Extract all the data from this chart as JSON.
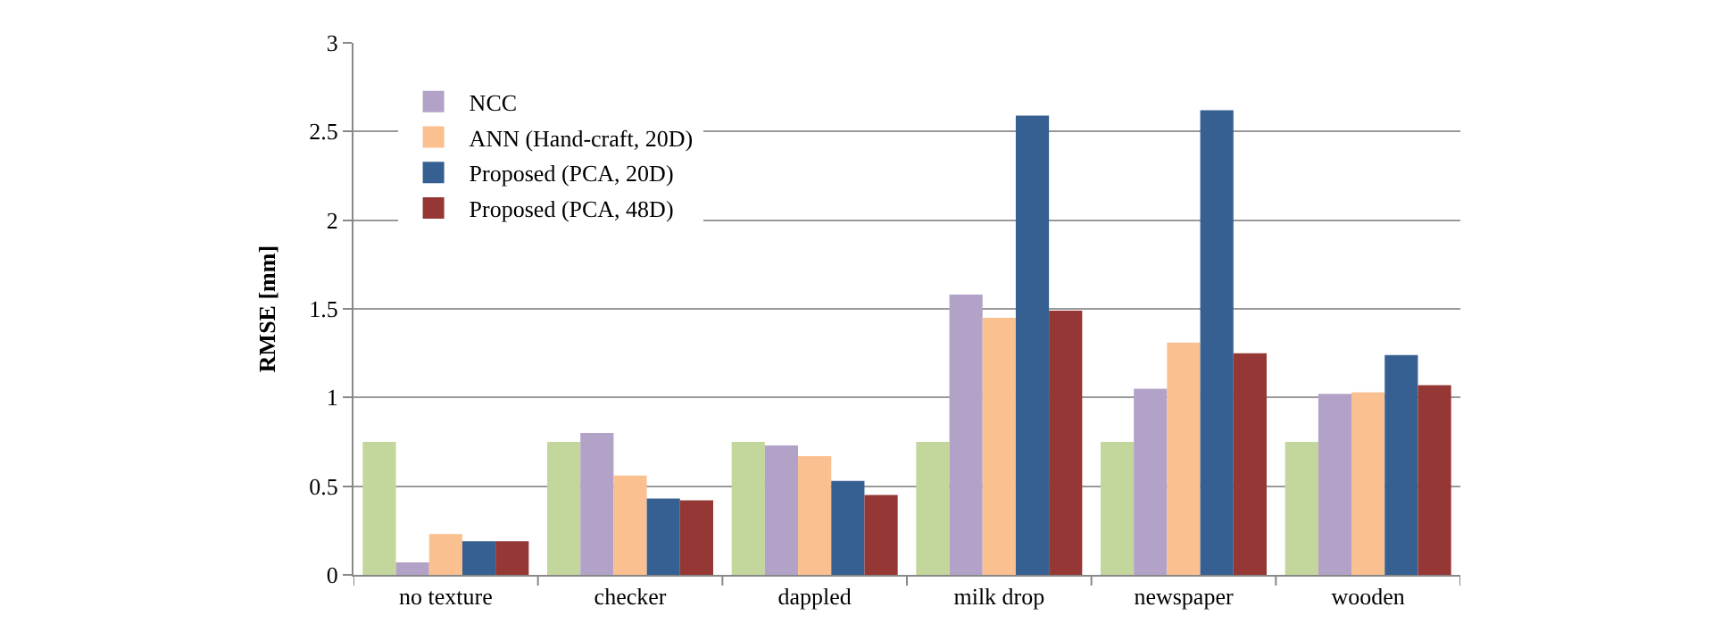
{
  "chart_data": {
    "type": "bar",
    "ylabel": "RMSE [mm]",
    "categories": [
      "no texture",
      "checker",
      "dappled",
      "milk drop",
      "newspaper",
      "wooden"
    ],
    "series": [
      {
        "color": "#c3d69b",
        "values": [
          0.75,
          0.75,
          0.75,
          0.75,
          0.75,
          0.75
        ]
      },
      {
        "name": "NCC",
        "color": "#b3a2c7",
        "values": [
          0.07,
          0.8,
          0.73,
          1.58,
          1.05,
          1.02
        ]
      },
      {
        "name": "ANN (Hand-craft, 20D)",
        "color": "#fac090",
        "values": [
          0.23,
          0.56,
          0.67,
          1.45,
          1.31,
          1.03
        ]
      },
      {
        "name": "Proposed (PCA, 20D)",
        "color": "#376092",
        "values": [
          0.19,
          0.43,
          0.53,
          2.59,
          2.62,
          1.24
        ]
      },
      {
        "name": "Proposed (PCA, 48D)",
        "color": "#953735",
        "values": [
          0.19,
          0.42,
          0.45,
          1.49,
          1.25,
          1.07
        ]
      }
    ],
    "ylim": [
      0,
      3
    ],
    "yticks": [
      0,
      0.5,
      1,
      1.5,
      2,
      2.5,
      3
    ],
    "grid": "y",
    "legend": "top left"
  }
}
